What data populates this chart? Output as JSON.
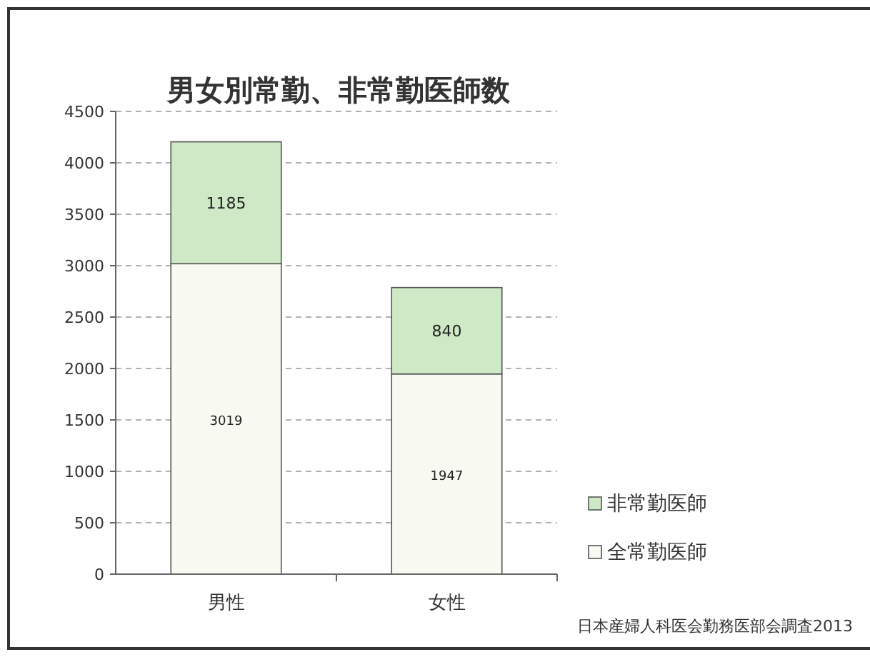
{
  "chart_data": {
    "type": "bar",
    "title": "男女別常勤、非常勤医師数",
    "categories": [
      "男性",
      "女性"
    ],
    "stacked": true,
    "series": [
      {
        "name": "全常勤医師",
        "color": "#f8faf2",
        "values": [
          3019,
          1947
        ]
      },
      {
        "name": "非常勤医師",
        "color": "#cfe9c6",
        "values": [
          1185,
          840
        ]
      }
    ],
    "ylim": [
      0,
      4500
    ],
    "yticks": [
      0,
      500,
      1000,
      1500,
      2000,
      2500,
      3000,
      3500,
      4000,
      4500
    ],
    "grid": "y",
    "legend": "bottom right",
    "data_labels": true,
    "annotations": [
      "日本産婦人科医会勤務医部会調査2013"
    ]
  }
}
